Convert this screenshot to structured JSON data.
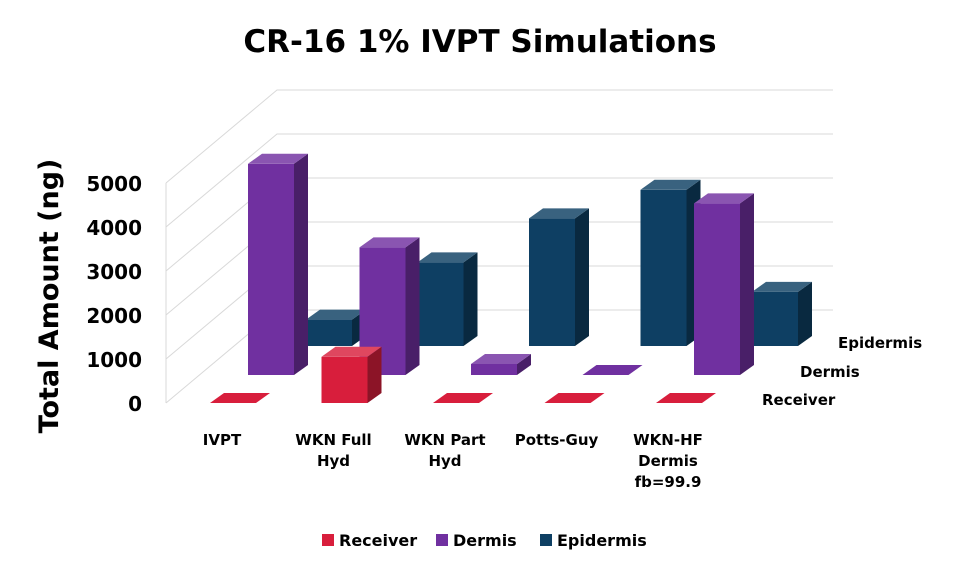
{
  "chart_data": {
    "type": "bar",
    "title": "CR-16 1% IVPT Simulations",
    "ylabel": "Total Amount (ng)",
    "xlabel": "",
    "ylim": [
      0,
      5000
    ],
    "yticks": [
      "0",
      "1000",
      "2000",
      "3000",
      "4000",
      "5000"
    ],
    "grid": true,
    "legend_position": "bottom",
    "categories": [
      [
        "IVPT"
      ],
      [
        "WKN Full",
        "Hyd"
      ],
      [
        "WKN Part",
        "Hyd"
      ],
      [
        "Potts-Guy"
      ],
      [
        "WKN-HF",
        "Dermis",
        "fb=99.9"
      ]
    ],
    "depth_labels": [
      "Receiver",
      "Dermis",
      "Epidermis"
    ],
    "series": [
      {
        "name": "Receiver",
        "color": "#d81e3c",
        "values": [
          0,
          1050,
          0,
          0,
          0
        ]
      },
      {
        "name": "Dermis",
        "color": "#7030a0",
        "values": [
          4800,
          2900,
          250,
          0,
          3900
        ]
      },
      {
        "name": "Epidermis",
        "color": "#0e3f63",
        "values": [
          600,
          1900,
          2900,
          3550,
          1230
        ]
      }
    ]
  }
}
